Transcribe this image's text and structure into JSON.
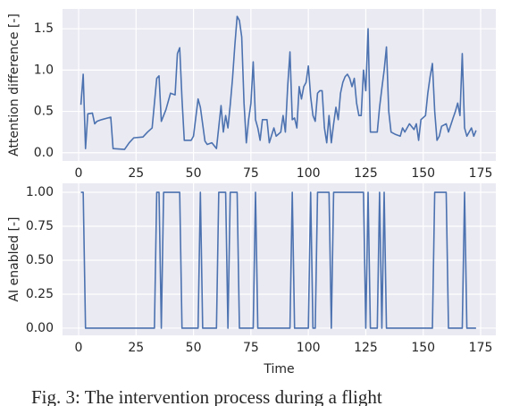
{
  "chart_data": [
    {
      "type": "line",
      "ylabel": "Attention difference [-]",
      "x": [
        1,
        2,
        3,
        4,
        6,
        7,
        8,
        10,
        14,
        15,
        20,
        22,
        24,
        28,
        30,
        32,
        33,
        34,
        35,
        36,
        38,
        40,
        42,
        43,
        44,
        45,
        46,
        49,
        50,
        52,
        53,
        55,
        56,
        58,
        60,
        62,
        63,
        64,
        65,
        66,
        67,
        68,
        69,
        70,
        71,
        72,
        73,
        74,
        75,
        76,
        77,
        78,
        79,
        80,
        82,
        83,
        85,
        86,
        88,
        89,
        90,
        91,
        92,
        93,
        94,
        95,
        96,
        97,
        98,
        99,
        100,
        101,
        102,
        103,
        104,
        105,
        106,
        107,
        108,
        109,
        110,
        111,
        112,
        113,
        114,
        115,
        116,
        117,
        118,
        119,
        120,
        121,
        122,
        123,
        124,
        125,
        126,
        127,
        130,
        131,
        132,
        133,
        134,
        135,
        136,
        138,
        140,
        141,
        142,
        144,
        146,
        147,
        148,
        149,
        151,
        152,
        153,
        154,
        155,
        156,
        157,
        158,
        160,
        161,
        163,
        164,
        165,
        166,
        167,
        168,
        169,
        170,
        171,
        172,
        173
      ],
      "series": [
        {
          "color": "#4c72b0",
          "values": [
            0.58,
            0.95,
            0.05,
            0.47,
            0.48,
            0.35,
            0.38,
            0.4,
            0.43,
            0.05,
            0.04,
            0.12,
            0.18,
            0.19,
            0.25,
            0.3,
            0.6,
            0.9,
            0.93,
            0.38,
            0.52,
            0.72,
            0.7,
            1.2,
            1.27,
            0.65,
            0.15,
            0.15,
            0.2,
            0.65,
            0.55,
            0.14,
            0.1,
            0.12,
            0.05,
            0.57,
            0.25,
            0.45,
            0.3,
            0.58,
            0.9,
            1.3,
            1.65,
            1.6,
            1.4,
            0.6,
            0.12,
            0.4,
            0.6,
            1.1,
            0.4,
            0.3,
            0.15,
            0.4,
            0.4,
            0.12,
            0.3,
            0.2,
            0.25,
            0.45,
            0.25,
            0.8,
            1.22,
            0.4,
            0.42,
            0.3,
            0.8,
            0.65,
            0.8,
            0.85,
            1.05,
            0.68,
            0.45,
            0.38,
            0.72,
            0.75,
            0.75,
            0.3,
            0.12,
            0.45,
            0.12,
            0.35,
            0.55,
            0.4,
            0.72,
            0.85,
            0.92,
            0.95,
            0.9,
            0.8,
            0.9,
            0.6,
            0.45,
            0.45,
            1.0,
            0.75,
            1.5,
            0.25,
            0.25,
            0.55,
            0.78,
            1.0,
            1.28,
            0.5,
            0.25,
            0.22,
            0.2,
            0.3,
            0.25,
            0.35,
            0.28,
            0.35,
            0.15,
            0.4,
            0.45,
            0.72,
            0.92,
            1.08,
            0.5,
            0.15,
            0.2,
            0.32,
            0.35,
            0.25,
            0.42,
            0.5,
            0.6,
            0.45,
            1.2,
            0.3,
            0.2,
            0.25,
            0.3,
            0.2,
            0.27
          ]
        }
      ],
      "xlim": [
        -7,
        181.6
      ],
      "xticks": [
        0,
        25,
        50,
        75,
        100,
        125,
        150,
        175
      ],
      "ylim": [
        -0.1,
        1.74
      ],
      "yticks": [
        {
          "value": 0,
          "label": "0.0"
        },
        0.5,
        {
          "value": 1,
          "label": "1.0"
        },
        1.5
      ],
      "grid": true
    },
    {
      "type": "line",
      "ylabel": "AI enabled [-]",
      "xlabel": "Time",
      "x": [
        1,
        2,
        3,
        33,
        34,
        35,
        36,
        37,
        44,
        45,
        52,
        53,
        54,
        60,
        61,
        64,
        65,
        66,
        69,
        70,
        76,
        77,
        78,
        92,
        93,
        94,
        100,
        101,
        102,
        103,
        104,
        109,
        110,
        111,
        124,
        125,
        126,
        127,
        130,
        131,
        132,
        133,
        134,
        154,
        155,
        160,
        161,
        167,
        168,
        169,
        173
      ],
      "series": [
        {
          "color": "#4c72b0",
          "values": [
            1,
            1,
            0,
            0,
            1,
            1,
            0,
            1,
            1,
            0,
            0,
            1,
            0,
            0,
            1,
            1,
            0,
            1,
            1,
            0,
            0,
            1,
            0,
            0,
            1,
            0,
            0,
            1,
            0,
            0,
            1,
            1,
            0,
            1,
            1,
            0,
            1,
            0,
            0,
            1,
            0,
            1,
            0,
            0,
            1,
            1,
            0,
            0,
            1,
            0,
            0
          ]
        }
      ],
      "xlim": [
        -7,
        181.6
      ],
      "xticks": [
        0,
        25,
        50,
        75,
        100,
        125,
        150,
        175
      ],
      "ylim": [
        -0.053,
        1.066
      ],
      "yticks": [
        {
          "value": 0,
          "label": "0.00"
        },
        0.25,
        {
          "value": 0.5,
          "label": "0.50"
        },
        0.75,
        {
          "value": 1,
          "label": "1.00"
        }
      ],
      "grid": true
    }
  ],
  "caption": "Fig. 3: The intervention process during a flight"
}
